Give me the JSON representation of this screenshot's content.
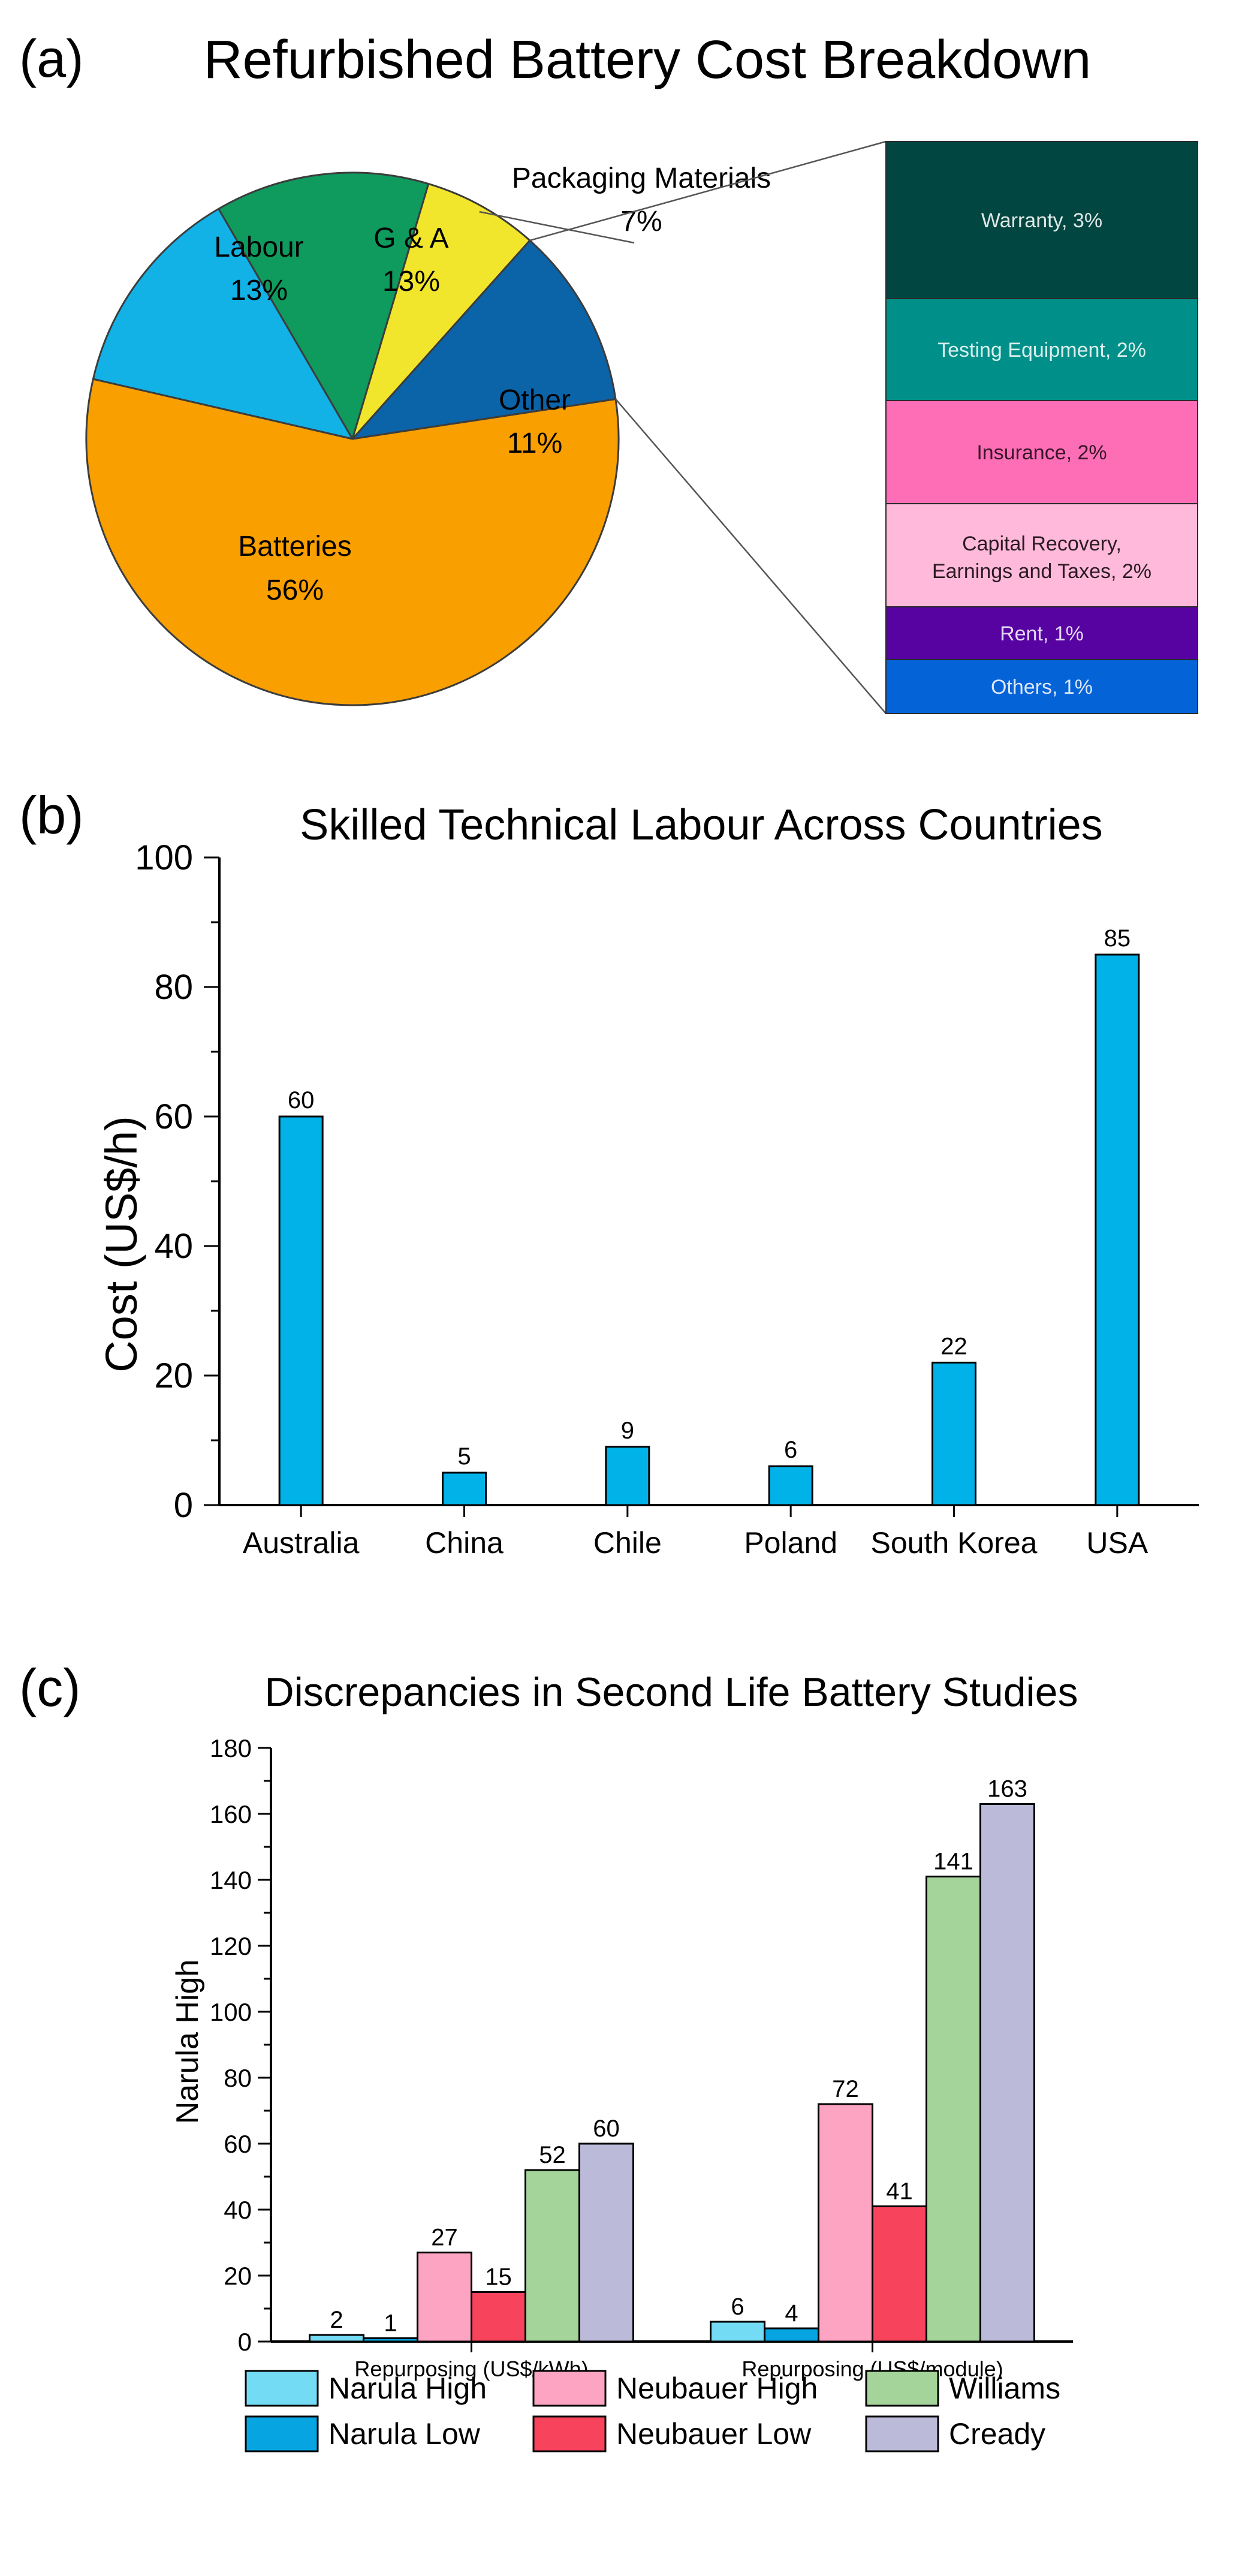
{
  "panels": {
    "a": {
      "label": "(a)"
    },
    "b": {
      "label": "(b)"
    },
    "c": {
      "label": "(c)"
    }
  },
  "chart_data": [
    {
      "id": "a",
      "type": "pie",
      "title": "Refurbished Battery Cost Breakdown",
      "slices": [
        {
          "label": "Labour",
          "value": 13,
          "value_label": "13%",
          "color": "#12b2e6"
        },
        {
          "label": "G & A",
          "value": 13,
          "value_label": "13%",
          "color": "#0f9a5e"
        },
        {
          "label": "Packaging Materials",
          "value": 7,
          "value_label": "7%",
          "color": "#f2e62c"
        },
        {
          "label": "Other",
          "value": 11,
          "value_label": "11%",
          "color": "#0b63a8"
        },
        {
          "label": "Batteries",
          "value": 56,
          "value_label": "56%",
          "color": "#f99f00"
        }
      ],
      "breakdown_of": "Other",
      "breakdown": [
        {
          "label": "Warranty, 3%",
          "value": 3,
          "color": "#014640",
          "text_color": "#dfe8e6"
        },
        {
          "label": "Testing Equipment, 2%",
          "value": 2,
          "color": "#019089",
          "text_color": "#d9efec"
        },
        {
          "label": "Insurance, 2%",
          "value": 2,
          "color": "#fd6eb7",
          "text_color": "#3a1528"
        },
        {
          "label": "Capital Recovery, Earnings and Taxes, 2%",
          "value": 2,
          "color": "#ffbadb",
          "text_color": "#2c1a22"
        },
        {
          "label": "Rent, 1%",
          "value": 1,
          "color": "#5603a2",
          "text_color": "#e4d9f1"
        },
        {
          "label": "Others, 1%",
          "value": 1,
          "color": "#0563d8",
          "text_color": "#dbe7f7"
        }
      ]
    },
    {
      "id": "b",
      "type": "bar",
      "title": "Skilled Technical Labour Across Countries",
      "xlabel": "",
      "ylabel": "Cost (US$/h)",
      "categories": [
        "Australia",
        "China",
        "Chile",
        "Poland",
        "South Korea",
        "USA"
      ],
      "values": [
        60,
        5,
        9,
        6,
        22,
        85
      ],
      "value_labels": [
        "60",
        "5",
        "9",
        "6",
        "22",
        "85"
      ],
      "ylim": [
        0,
        100
      ],
      "yticks": [
        0,
        20,
        40,
        60,
        80,
        100
      ],
      "ytick_labels": [
        "0",
        "20",
        "40",
        "60",
        "80",
        "100"
      ],
      "color": "#00b2e8"
    },
    {
      "id": "c",
      "type": "bar",
      "title": "Discrepancies in Second Life Battery Studies",
      "xlabel": "",
      "ylabel": "Narula High",
      "categories": [
        "Repurposing (US$/kWh)",
        "Repurposing (US$/module)"
      ],
      "series": [
        {
          "name": "Narula High",
          "values": [
            2,
            6
          ],
          "value_labels": [
            "2",
            "6"
          ],
          "color": "#73dbf3"
        },
        {
          "name": "Narula Low",
          "values": [
            1,
            4
          ],
          "value_labels": [
            "1",
            "4"
          ],
          "color": "#06a5e1"
        },
        {
          "name": "Neubauer High",
          "values": [
            27,
            72
          ],
          "value_labels": [
            "27",
            "72"
          ],
          "color": "#fca4c1"
        },
        {
          "name": "Neubauer Low",
          "values": [
            15,
            41
          ],
          "value_labels": [
            "15",
            "41"
          ],
          "color": "#f7435c"
        },
        {
          "name": "Williams",
          "values": [
            52,
            141
          ],
          "value_labels": [
            "52",
            "141"
          ],
          "color": "#a4d49a"
        },
        {
          "name": "Cready",
          "values": [
            60,
            163
          ],
          "value_labels": [
            "60",
            "163"
          ],
          "color": "#bbbad9"
        }
      ],
      "ylim": [
        0,
        180
      ],
      "yticks": [
        0,
        20,
        40,
        60,
        80,
        100,
        120,
        140,
        160,
        180
      ],
      "ytick_labels": [
        "0",
        "20",
        "40",
        "60",
        "80",
        "100",
        "120",
        "140",
        "160",
        "180"
      ],
      "legend": {
        "placement": "bottom",
        "columns": [
          [
            "Narula High",
            "Narula Low"
          ],
          [
            "Neubauer High",
            "Neubauer Low"
          ],
          [
            "Williams",
            "Cready"
          ]
        ]
      }
    }
  ]
}
